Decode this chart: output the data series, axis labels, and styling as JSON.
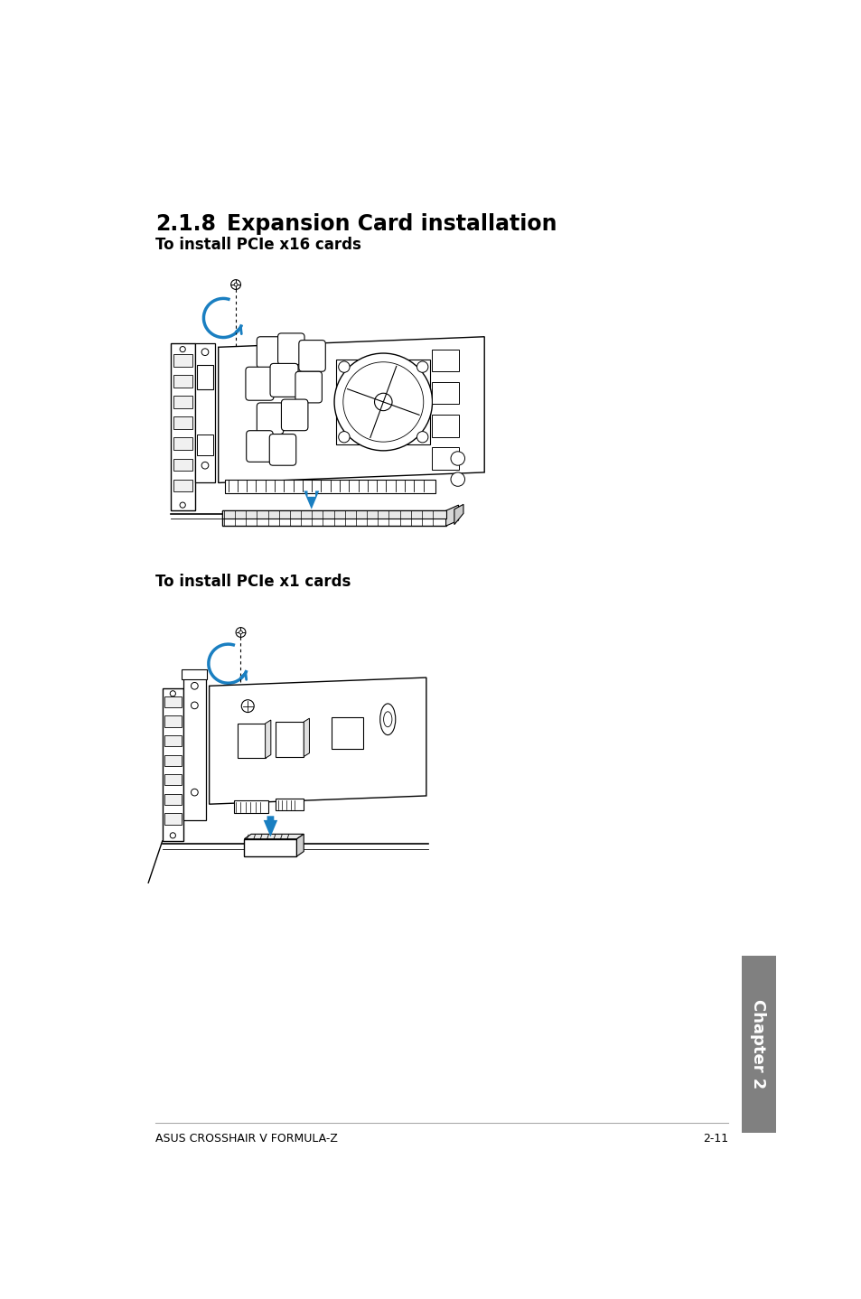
{
  "title": "2.1.8",
  "title_text": "Expansion Card installation",
  "subtitle1": "To install PCIe x16 cards",
  "subtitle2": "To install PCIe x1 cards",
  "footer_left": "ASUS CROSSHAIR V FORMULA-Z",
  "footer_right": "2-11",
  "chapter_label": "Chapter 2",
  "bg_color": "#ffffff",
  "text_color": "#000000",
  "chapter_tab_color": "#808080",
  "chapter_text_color": "#ffffff",
  "blue_color": "#1a7fc1",
  "line_color": "#000000",
  "title_fontsize": 17,
  "subtitle_fontsize": 12,
  "footer_fontsize": 9,
  "chapter_fontsize": 14
}
